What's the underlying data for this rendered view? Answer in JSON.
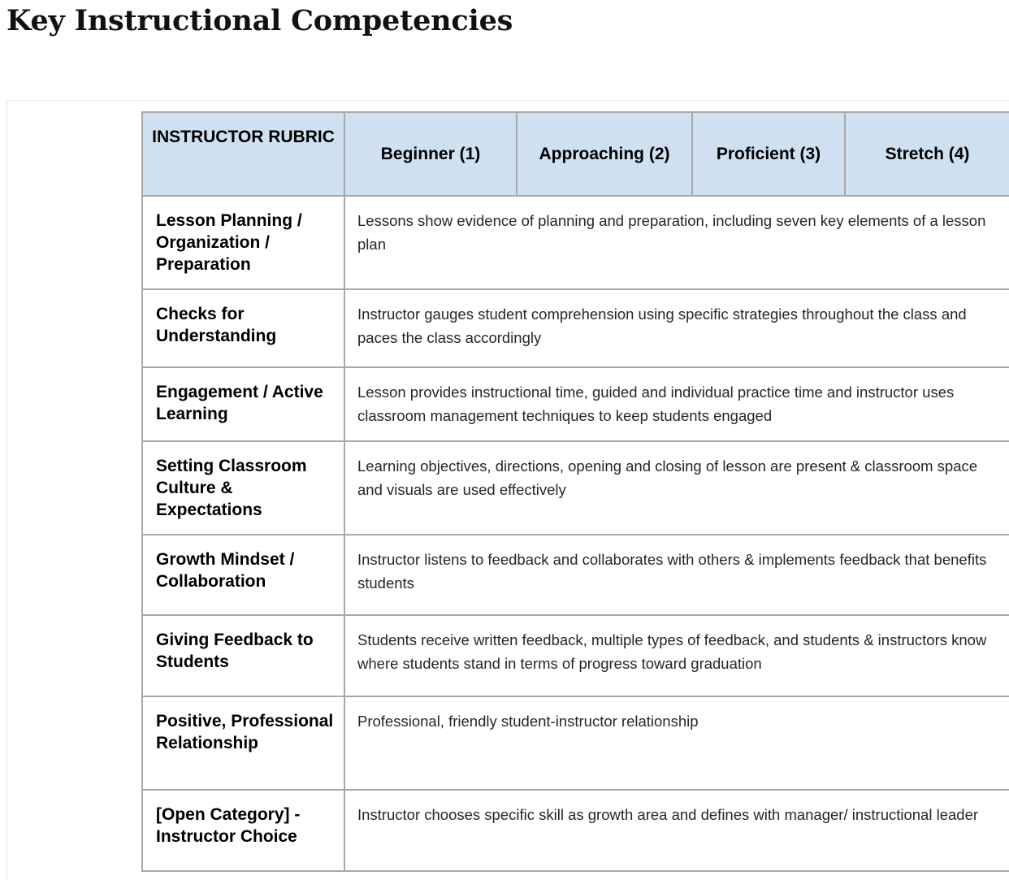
{
  "page": {
    "title": "Key Instructional Competencies"
  },
  "rubric": {
    "header": {
      "rubric_label": "INSTRUCTOR RUBRIC",
      "levels": [
        "Beginner (1)",
        "Approaching (2)",
        "Proficient (3)",
        "Stretch (4)"
      ]
    },
    "rows": [
      {
        "category": "Lesson Planning / Organization / Preparation",
        "description": "Lessons show evidence of planning and preparation, including seven key elements of a lesson plan"
      },
      {
        "category": "Checks for Understanding",
        "description": "Instructor gauges student comprehension using specific strategies throughout the class and paces the class accordingly"
      },
      {
        "category": "Engagement / Active Learning",
        "description": "Lesson provides instructional time, guided and individual practice time and instructor uses classroom management techniques to keep students engaged"
      },
      {
        "category": "Setting Classroom Culture & Expectations",
        "description": "Learning objectives, directions, opening and closing of lesson are present & classroom space and visuals are used effectively"
      },
      {
        "category": "Growth Mindset / Collaboration",
        "description": "Instructor listens to feedback and collaborates with others & implements feedback that benefits students"
      },
      {
        "category": "Giving Feedback to Students",
        "description": "Students receive written feedback, multiple types of feedback, and students & instructors know where students stand in terms of progress toward graduation"
      },
      {
        "category": "Positive, Professional Relationship",
        "description": "Professional, friendly student-instructor relationship"
      },
      {
        "category": "[Open Category] - Instructor Choice",
        "description": "Instructor chooses specific skill as growth area and defines with manager/ instructional leader"
      }
    ]
  }
}
